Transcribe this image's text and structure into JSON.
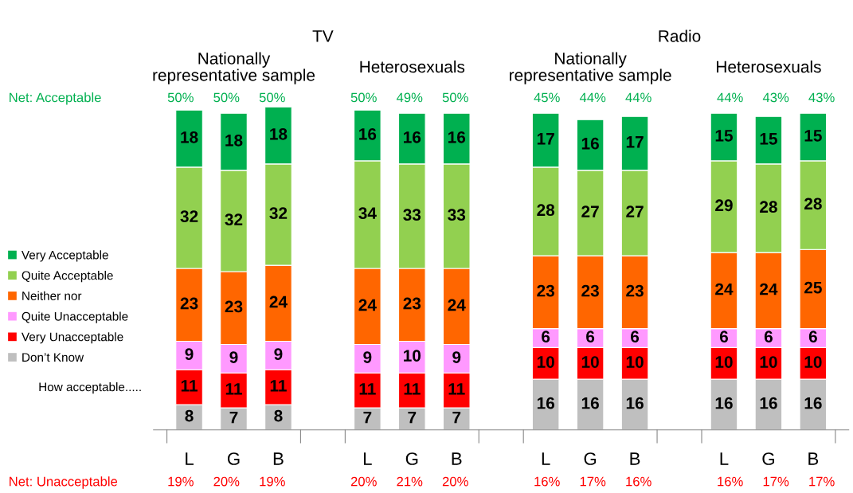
{
  "chart_data": {
    "type": "bar",
    "stacked": true,
    "data_labels": true,
    "legend": "left",
    "grid": false,
    "categories": [
      "L",
      "G",
      "B",
      null,
      "L",
      "G",
      "B",
      null,
      "L",
      "G",
      "B",
      null,
      "L",
      "G",
      "B"
    ],
    "series": [
      {
        "name": "Don’t Know",
        "color": "#bfbfbf",
        "values": [
          8,
          7,
          8,
          null,
          7,
          7,
          7,
          null,
          16,
          16,
          16,
          null,
          16,
          16,
          16
        ]
      },
      {
        "name": "Very Unacceptable",
        "color": "#ff0000",
        "values": [
          11,
          11,
          11,
          null,
          11,
          11,
          11,
          null,
          10,
          10,
          10,
          null,
          10,
          10,
          10
        ]
      },
      {
        "name": "Quite Unacceptable",
        "color": "#ff99ff",
        "values": [
          9,
          9,
          9,
          null,
          9,
          10,
          9,
          null,
          6,
          6,
          6,
          null,
          6,
          6,
          6
        ]
      },
      {
        "name": "Neither nor",
        "color": "#ff6600",
        "values": [
          23,
          23,
          24,
          null,
          24,
          23,
          24,
          null,
          23,
          23,
          23,
          null,
          24,
          24,
          25
        ]
      },
      {
        "name": "Quite Acceptable",
        "color": "#92d050",
        "values": [
          32,
          32,
          32,
          null,
          34,
          33,
          33,
          null,
          28,
          27,
          27,
          null,
          29,
          28,
          28
        ]
      },
      {
        "name": "Very Acceptable",
        "color": "#00b050",
        "values": [
          18,
          18,
          18,
          null,
          16,
          16,
          16,
          null,
          17,
          16,
          17,
          null,
          15,
          15,
          15
        ]
      }
    ],
    "annotations": [
      "TV",
      "Radio",
      "Nationally\nrepresentative sample",
      "Heterosexuals",
      "Nationally\nrepresentative sample",
      "Heterosexuals",
      "How acceptable.....",
      "Net: Acceptable",
      "50%",
      "50%",
      "50%",
      "50%",
      "49%",
      "50%",
      "45%",
      "44%",
      "44%",
      "44%",
      "43%",
      "43%",
      "Net: Unacceptable",
      "19%",
      "20%",
      "19%",
      "20%",
      "21%",
      "20%",
      "16%",
      "17%",
      "16%",
      "16%",
      "17%",
      "17%"
    ]
  }
}
